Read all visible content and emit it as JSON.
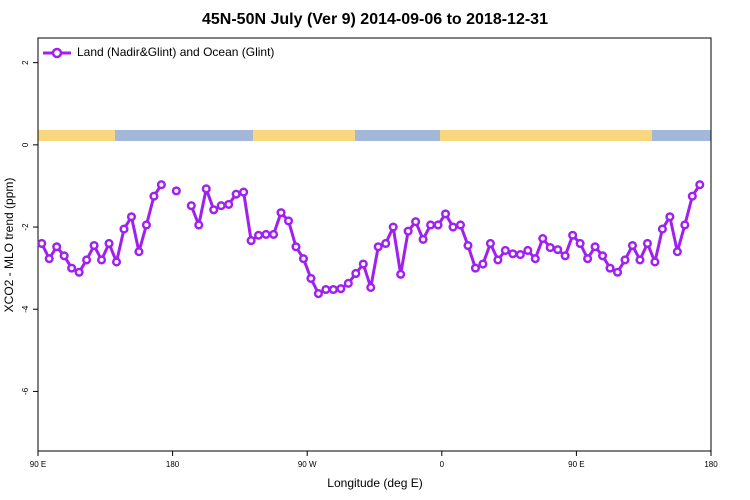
{
  "chart_data": {
    "type": "line",
    "title": "45N-50N July (Ver 9)   2014-09-06 to 2018-12-31",
    "xlabel": "Longitude (deg E)",
    "ylabel": "XCO2 - MLO trend (ppm)",
    "x": [
      92.5,
      97.5,
      102.5,
      107.5,
      112.5,
      117.5,
      122.5,
      127.5,
      132.5,
      137.5,
      142.5,
      147.5,
      152.5,
      157.5,
      162.5,
      167.5,
      172.5,
      177.5,
      182.5,
      187.5,
      192.5,
      197.5,
      202.5,
      207.5,
      212.5,
      217.5,
      222.5,
      227.5,
      232.5,
      237.5,
      242.5,
      247.5,
      252.5,
      257.5,
      262.5,
      267.5,
      272.5,
      277.5,
      282.5,
      287.5,
      292.5,
      297.5,
      302.5,
      307.5,
      312.5,
      317.5,
      322.5,
      327.5,
      332.5,
      337.5,
      342.5,
      347.5,
      352.5,
      357.5,
      362.5,
      367.5,
      372.5,
      377.5,
      382.5,
      387.5,
      392.5,
      397.5,
      402.5,
      407.5,
      412.5,
      417.5,
      422.5,
      427.5,
      432.5,
      437.5,
      442.5,
      447.5,
      452.5,
      457.5,
      462.5,
      467.5,
      472.5,
      477.5,
      482.5,
      487.5,
      492.5,
      497.5,
      502.5,
      507.5,
      512.5,
      517.5,
      522.5,
      527.5,
      532.5
    ],
    "series": [
      {
        "name": "Land (Nadir&Glint) and Ocean (Glint)",
        "color": "#a020f0",
        "values": [
          -2.4,
          -2.77,
          -2.48,
          -2.7,
          -3.0,
          -3.1,
          -2.8,
          -2.45,
          -2.8,
          -2.4,
          -2.85,
          -2.05,
          -1.75,
          -2.6,
          -1.95,
          -1.25,
          -0.97,
          null,
          -1.12,
          null,
          -1.48,
          -1.95,
          -1.07,
          -1.58,
          -1.48,
          -1.45,
          -1.2,
          -1.15,
          -2.33,
          -2.2,
          -2.18,
          -2.18,
          -1.65,
          -1.85,
          -2.48,
          -2.77,
          -3.25,
          -3.62,
          -3.52,
          -3.52,
          -3.5,
          -3.37,
          -3.13,
          -2.9,
          -3.47,
          -2.48,
          -2.4,
          -2.0,
          -3.15,
          -2.1,
          -1.87,
          -2.3,
          -1.95,
          -1.95,
          -1.68,
          -2.0,
          -1.95,
          -2.45,
          -3.0,
          -2.9,
          -2.4,
          -2.8,
          -2.57,
          -2.65,
          -2.67,
          -2.57,
          -2.77,
          -2.28,
          -2.5,
          -2.55,
          -2.7,
          -2.2,
          -2.4,
          -2.77,
          -2.48,
          -2.7,
          -3.0,
          -3.1,
          -2.8,
          -2.45,
          -2.8,
          -2.4,
          -2.85,
          -2.05,
          -1.75,
          -2.6,
          -1.95,
          -1.25,
          -0.97
        ]
      }
    ],
    "xlim": [
      90,
      540
    ],
    "xticks": [
      {
        "value": 90,
        "label": "90 E"
      },
      {
        "value": 180,
        "label": "180"
      },
      {
        "value": 270,
        "label": "90 W"
      },
      {
        "value": 360,
        "label": "0"
      },
      {
        "value": 450,
        "label": "90 E"
      },
      {
        "value": 540,
        "label": "180"
      }
    ],
    "ylim": [
      -7.45,
      2.6
    ],
    "yticks": [
      -6,
      -4,
      -2,
      0,
      2
    ],
    "legend": "top-left"
  }
}
